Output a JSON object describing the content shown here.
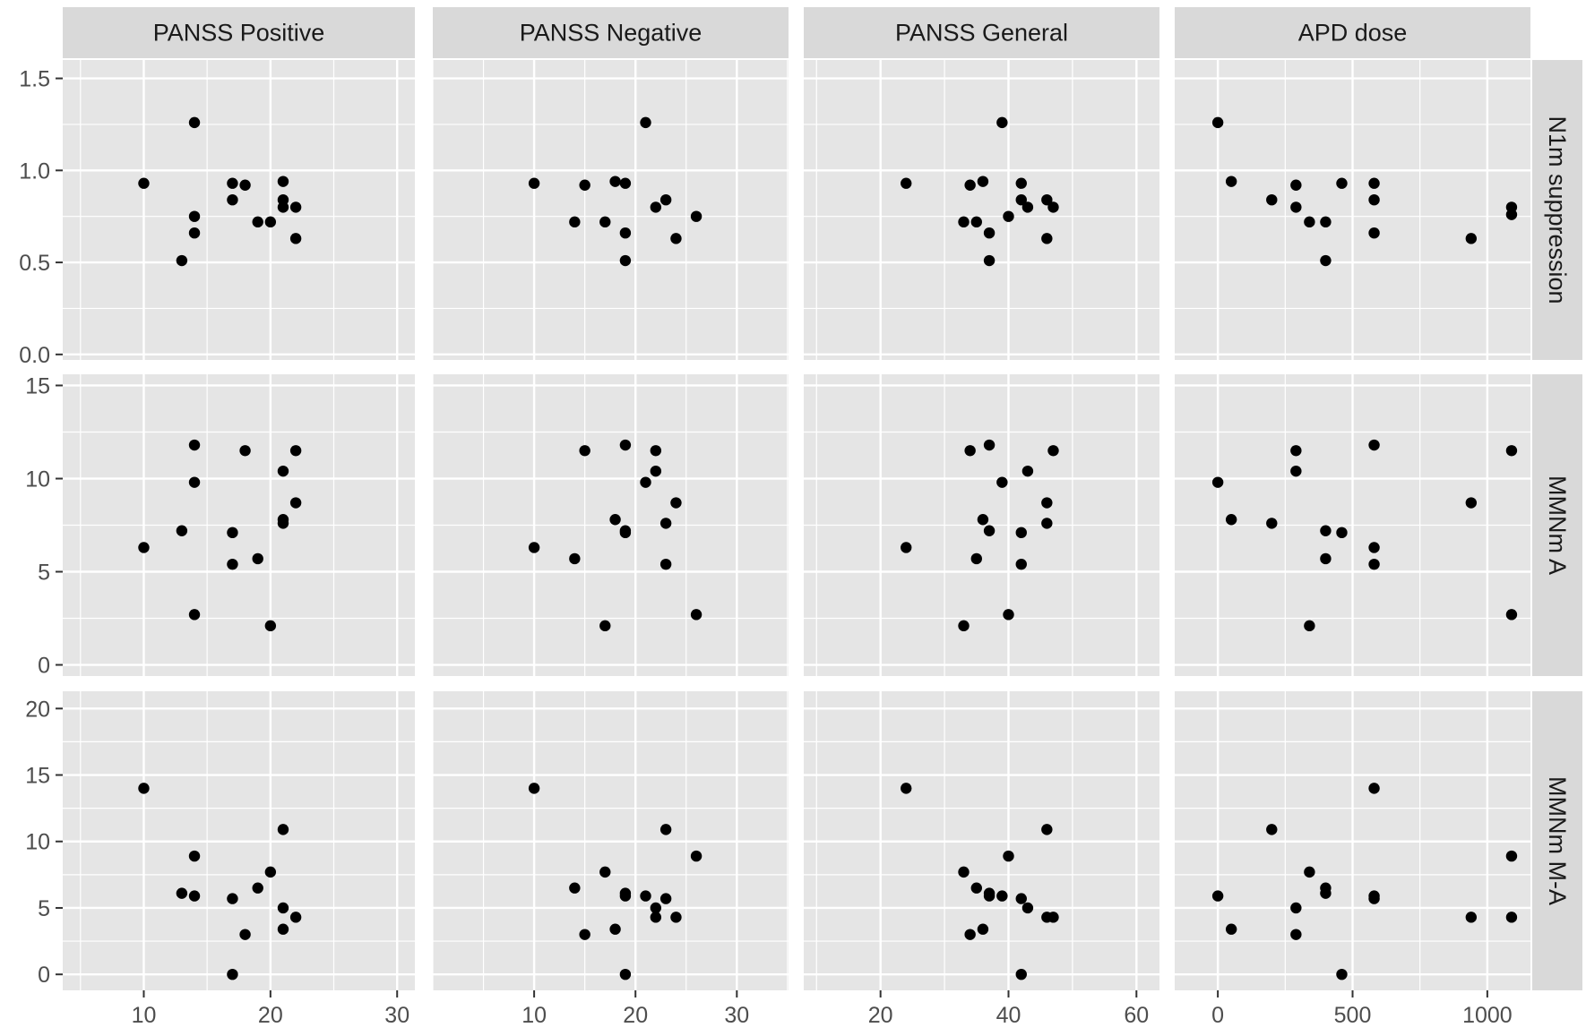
{
  "chart_data": {
    "type": "scatter",
    "layout": "facet_grid",
    "columns": [
      {
        "label": "PANSS Positive",
        "xlim": [
          3.6,
          31.4
        ],
        "xticks": [
          10,
          20,
          30
        ]
      },
      {
        "label": "PANSS Negative",
        "xlim": [
          0.0,
          35.1
        ],
        "xticks": [
          10,
          20,
          30
        ]
      },
      {
        "label": "PANSS General",
        "xlim": [
          8.0,
          63.6
        ],
        "xticks": [
          20,
          40,
          60
        ]
      },
      {
        "label": "APD dose",
        "xlim": [
          -160,
          1160
        ],
        "xticks": [
          0,
          500,
          1000
        ]
      }
    ],
    "rows": [
      {
        "label": "N1m suppression",
        "ylim": [
          -0.03,
          1.6
        ],
        "yticks": [
          0.0,
          0.5,
          1.0,
          1.5
        ],
        "ytick_labels": [
          "0.0",
          "0.5",
          "1.0",
          "1.5"
        ]
      },
      {
        "label": "MMNm A",
        "ylim": [
          -0.6,
          15.6
        ],
        "yticks": [
          0,
          5,
          10,
          15
        ],
        "ytick_labels": [
          "0",
          "5",
          "10",
          "15"
        ]
      },
      {
        "label": "MMNm M-A",
        "ylim": [
          -1.2,
          21.3
        ],
        "yticks": [
          0,
          5,
          10,
          15,
          20
        ],
        "ytick_labels": [
          "0",
          "5",
          "10",
          "15",
          "20"
        ]
      }
    ],
    "grid": true,
    "point_color": "#000000",
    "background_color": "#e5e5e5",
    "strip_color": "#d9d9d9",
    "panels": [
      {
        "row": 0,
        "col": 0,
        "points": [
          [
            10,
            0.93
          ],
          [
            13,
            0.51
          ],
          [
            14,
            1.26
          ],
          [
            14,
            0.75
          ],
          [
            14,
            0.66
          ],
          [
            17,
            0.93
          ],
          [
            17,
            0.84
          ],
          [
            18,
            0.92
          ],
          [
            19,
            0.72
          ],
          [
            20,
            0.72
          ],
          [
            21,
            0.94
          ],
          [
            21,
            0.84
          ],
          [
            21,
            0.8
          ],
          [
            22,
            0.8
          ],
          [
            22,
            0.63
          ]
        ]
      },
      {
        "row": 0,
        "col": 1,
        "points": [
          [
            10,
            0.93
          ],
          [
            14,
            0.72
          ],
          [
            15,
            0.92
          ],
          [
            17,
            0.72
          ],
          [
            18,
            0.94
          ],
          [
            19,
            0.93
          ],
          [
            19,
            0.66
          ],
          [
            19,
            0.51
          ],
          [
            21,
            1.26
          ],
          [
            22,
            0.8
          ],
          [
            23,
            0.84
          ],
          [
            24,
            0.63
          ],
          [
            26,
            0.75
          ]
        ]
      },
      {
        "row": 0,
        "col": 2,
        "points": [
          [
            24,
            0.93
          ],
          [
            33,
            0.72
          ],
          [
            34,
            0.92
          ],
          [
            35,
            0.72
          ],
          [
            36,
            0.94
          ],
          [
            37,
            0.66
          ],
          [
            37,
            0.51
          ],
          [
            39,
            1.26
          ],
          [
            40,
            0.75
          ],
          [
            42,
            0.93
          ],
          [
            42,
            0.84
          ],
          [
            43,
            0.8
          ],
          [
            46,
            0.84
          ],
          [
            46,
            0.63
          ],
          [
            47,
            0.8
          ]
        ]
      },
      {
        "row": 0,
        "col": 3,
        "points": [
          [
            0,
            1.26
          ],
          [
            50,
            0.94
          ],
          [
            200,
            0.84
          ],
          [
            290,
            0.92
          ],
          [
            290,
            0.8
          ],
          [
            340,
            0.72
          ],
          [
            400,
            0.72
          ],
          [
            400,
            0.51
          ],
          [
            460,
            0.93
          ],
          [
            580,
            0.93
          ],
          [
            580,
            0.84
          ],
          [
            580,
            0.66
          ],
          [
            940,
            0.63
          ],
          [
            1090,
            0.8
          ],
          [
            1090,
            0.76
          ]
        ]
      },
      {
        "row": 1,
        "col": 0,
        "points": [
          [
            10,
            6.3
          ],
          [
            13,
            7.2
          ],
          [
            14,
            11.8
          ],
          [
            14,
            9.8
          ],
          [
            14,
            2.7
          ],
          [
            17,
            7.1
          ],
          [
            17,
            5.4
          ],
          [
            18,
            11.5
          ],
          [
            19,
            5.7
          ],
          [
            20,
            2.1
          ],
          [
            21,
            10.4
          ],
          [
            21,
            7.8
          ],
          [
            21,
            7.6
          ],
          [
            22,
            11.5
          ],
          [
            22,
            8.7
          ]
        ]
      },
      {
        "row": 1,
        "col": 1,
        "points": [
          [
            10,
            6.3
          ],
          [
            14,
            5.7
          ],
          [
            15,
            11.5
          ],
          [
            17,
            2.1
          ],
          [
            18,
            7.8
          ],
          [
            19,
            11.8
          ],
          [
            19,
            7.2
          ],
          [
            19,
            7.1
          ],
          [
            21,
            9.8
          ],
          [
            22,
            11.5
          ],
          [
            22,
            10.4
          ],
          [
            23,
            7.6
          ],
          [
            23,
            5.4
          ],
          [
            24,
            8.7
          ],
          [
            26,
            2.7
          ]
        ]
      },
      {
        "row": 1,
        "col": 2,
        "points": [
          [
            24,
            6.3
          ],
          [
            33,
            2.1
          ],
          [
            34,
            11.5
          ],
          [
            35,
            5.7
          ],
          [
            36,
            7.8
          ],
          [
            37,
            11.8
          ],
          [
            37,
            7.2
          ],
          [
            39,
            9.8
          ],
          [
            40,
            2.7
          ],
          [
            42,
            7.1
          ],
          [
            42,
            5.4
          ],
          [
            43,
            10.4
          ],
          [
            46,
            8.7
          ],
          [
            46,
            7.6
          ],
          [
            47,
            11.5
          ]
        ]
      },
      {
        "row": 1,
        "col": 3,
        "points": [
          [
            0,
            9.8
          ],
          [
            50,
            7.8
          ],
          [
            200,
            7.6
          ],
          [
            290,
            11.5
          ],
          [
            290,
            10.4
          ],
          [
            340,
            2.1
          ],
          [
            400,
            7.2
          ],
          [
            400,
            5.7
          ],
          [
            460,
            7.1
          ],
          [
            580,
            11.8
          ],
          [
            580,
            6.3
          ],
          [
            580,
            5.4
          ],
          [
            940,
            8.7
          ],
          [
            1090,
            11.5
          ],
          [
            1090,
            2.7
          ]
        ]
      },
      {
        "row": 2,
        "col": 0,
        "points": [
          [
            10,
            14.0
          ],
          [
            13,
            6.1
          ],
          [
            14,
            8.9
          ],
          [
            14,
            5.9
          ],
          [
            17,
            5.7
          ],
          [
            17,
            0.0
          ],
          [
            18,
            3.0
          ],
          [
            19,
            6.5
          ],
          [
            20,
            7.7
          ],
          [
            21,
            10.9
          ],
          [
            21,
            5.0
          ],
          [
            21,
            3.4
          ],
          [
            22,
            4.3
          ]
        ]
      },
      {
        "row": 2,
        "col": 1,
        "points": [
          [
            10,
            14.0
          ],
          [
            14,
            6.5
          ],
          [
            15,
            3.0
          ],
          [
            17,
            7.7
          ],
          [
            18,
            3.4
          ],
          [
            19,
            6.1
          ],
          [
            19,
            5.9
          ],
          [
            19,
            0.0
          ],
          [
            21,
            5.9
          ],
          [
            22,
            5.0
          ],
          [
            22,
            4.3
          ],
          [
            23,
            10.9
          ],
          [
            23,
            5.7
          ],
          [
            24,
            4.3
          ],
          [
            26,
            8.9
          ]
        ]
      },
      {
        "row": 2,
        "col": 2,
        "points": [
          [
            24,
            14.0
          ],
          [
            33,
            7.7
          ],
          [
            34,
            3.0
          ],
          [
            35,
            6.5
          ],
          [
            36,
            3.4
          ],
          [
            37,
            6.1
          ],
          [
            37,
            5.9
          ],
          [
            39,
            5.9
          ],
          [
            40,
            8.9
          ],
          [
            42,
            5.7
          ],
          [
            42,
            0.0
          ],
          [
            43,
            5.0
          ],
          [
            46,
            10.9
          ],
          [
            46,
            4.3
          ],
          [
            47,
            4.3
          ]
        ]
      },
      {
        "row": 2,
        "col": 3,
        "points": [
          [
            0,
            5.9
          ],
          [
            50,
            3.4
          ],
          [
            200,
            10.9
          ],
          [
            290,
            5.0
          ],
          [
            290,
            3.0
          ],
          [
            340,
            7.7
          ],
          [
            400,
            6.5
          ],
          [
            400,
            6.1
          ],
          [
            460,
            0.0
          ],
          [
            580,
            14.0
          ],
          [
            580,
            5.9
          ],
          [
            580,
            5.7
          ],
          [
            940,
            4.3
          ],
          [
            1090,
            8.9
          ],
          [
            1090,
            4.3
          ]
        ]
      }
    ]
  }
}
